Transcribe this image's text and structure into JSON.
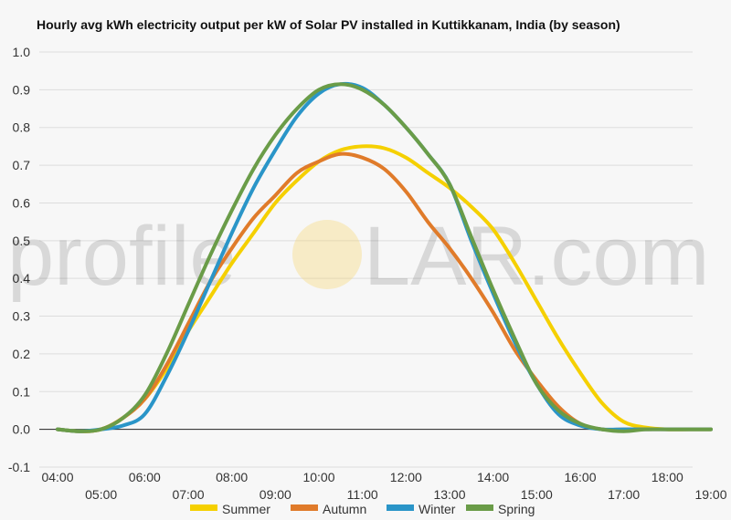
{
  "watermark": {
    "left": "profile",
    "right": "LAR.com"
  },
  "colors": {
    "grid": "#dddddd",
    "zero": "#222222",
    "sun": "#f6d36a"
  },
  "chart_data": {
    "type": "line",
    "title": "Hourly avg kWh electricity output per kW of Solar PV installed in Kuttikkanam, India (by season)",
    "xlabel": "",
    "ylabel": "",
    "xlim": [
      4,
      19
    ],
    "ylim": [
      -0.1,
      1.0
    ],
    "x_ticks": [
      "04:00",
      "05:00",
      "06:00",
      "07:00",
      "08:00",
      "09:00",
      "10:00",
      "11:00",
      "12:00",
      "13:00",
      "14:00",
      "15:00",
      "16:00",
      "17:00",
      "18:00",
      "19:00"
    ],
    "y_ticks": [
      -0.1,
      0.0,
      0.1,
      0.2,
      0.3,
      0.4,
      0.5,
      0.6,
      0.7,
      0.8,
      0.9,
      1.0
    ],
    "grid": true,
    "legend_position": "bottom",
    "x": [
      4,
      4.5,
      5,
      5.5,
      6,
      6.5,
      7,
      7.5,
      8,
      8.5,
      9,
      9.5,
      10,
      10.5,
      11,
      11.5,
      12,
      12.5,
      13,
      13.5,
      14,
      14.5,
      15,
      15.5,
      16,
      16.5,
      17,
      17.5,
      18,
      18.5,
      19
    ],
    "series": [
      {
        "name": "Summer",
        "color": "#f5d000",
        "values": [
          0,
          -0.005,
          0,
          0.03,
          0.08,
          0.16,
          0.26,
          0.35,
          0.44,
          0.52,
          0.6,
          0.66,
          0.71,
          0.74,
          0.75,
          0.745,
          0.72,
          0.68,
          0.64,
          0.59,
          0.53,
          0.44,
          0.34,
          0.24,
          0.15,
          0.07,
          0.02,
          0.005,
          0,
          0,
          0
        ]
      },
      {
        "name": "Autumn",
        "color": "#e07b2a",
        "values": [
          0,
          -0.005,
          0,
          0.03,
          0.08,
          0.17,
          0.28,
          0.39,
          0.48,
          0.56,
          0.62,
          0.68,
          0.71,
          0.73,
          0.72,
          0.69,
          0.63,
          0.55,
          0.48,
          0.4,
          0.31,
          0.21,
          0.13,
          0.06,
          0.015,
          0,
          0,
          0,
          0,
          0,
          0
        ]
      },
      {
        "name": "Winter",
        "color": "#2a95c8",
        "values": [
          0,
          -0.005,
          0,
          0.01,
          0.04,
          0.14,
          0.26,
          0.39,
          0.52,
          0.64,
          0.74,
          0.83,
          0.89,
          0.915,
          0.905,
          0.86,
          0.8,
          0.73,
          0.65,
          0.5,
          0.36,
          0.23,
          0.12,
          0.04,
          0.01,
          0,
          0,
          0,
          0,
          0,
          0
        ]
      },
      {
        "name": "Spring",
        "color": "#6a9c48",
        "values": [
          0,
          -0.005,
          0,
          0.03,
          0.09,
          0.2,
          0.33,
          0.46,
          0.58,
          0.69,
          0.78,
          0.85,
          0.9,
          0.915,
          0.9,
          0.86,
          0.8,
          0.73,
          0.65,
          0.51,
          0.37,
          0.24,
          0.12,
          0.05,
          0.015,
          0,
          -0.005,
          0,
          0,
          0,
          0
        ]
      }
    ]
  }
}
